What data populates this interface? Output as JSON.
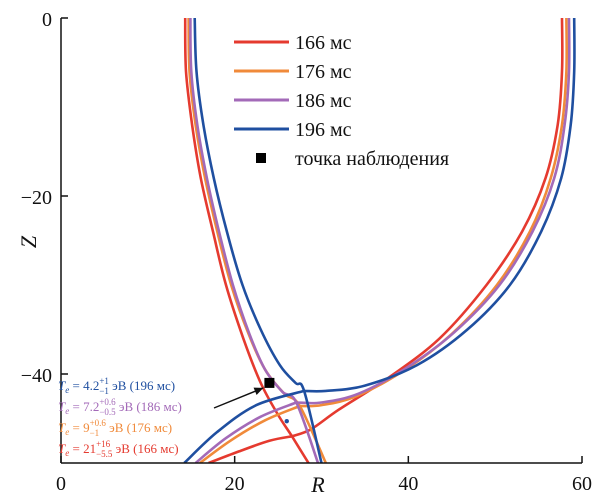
{
  "chart_data": {
    "type": "line",
    "title": "",
    "xlabel": "R",
    "ylabel": "Z",
    "xlim": [
      0,
      60
    ],
    "ylim": [
      -50,
      0
    ],
    "xticks": [
      "0",
      "20",
      "40",
      "60"
    ],
    "yticks": [
      "0",
      "−20",
      "−40"
    ],
    "grid": false,
    "legend_position": "top-center",
    "series": [
      {
        "name": "166 мс",
        "color": "#e53a2f",
        "x_point": [
          26.6,
          -47.0
        ],
        "inner_leg": [
          [
            14.3,
            0
          ],
          [
            14.4,
            -6
          ],
          [
            15.1,
            -12
          ],
          [
            16.1,
            -18
          ],
          [
            17.5,
            -24
          ],
          [
            19.0,
            -30
          ],
          [
            21.0,
            -36
          ],
          [
            23.0,
            -41
          ],
          [
            25.0,
            -44.6
          ],
          [
            26.6,
            -47.0
          ],
          [
            28.5,
            -50
          ]
        ],
        "outer_leg": [
          [
            57.7,
            0
          ],
          [
            57.7,
            -6
          ],
          [
            57.2,
            -12
          ],
          [
            55.8,
            -18
          ],
          [
            53.1,
            -24
          ],
          [
            49.0,
            -30
          ],
          [
            43.6,
            -36
          ],
          [
            37.6,
            -40.5
          ],
          [
            32.0,
            -44.0
          ],
          [
            28.8,
            -46.2
          ],
          [
            26.6,
            -47.0
          ]
        ],
        "divertor_leg": [
          [
            17.0,
            -50
          ],
          [
            20.5,
            -48.7
          ],
          [
            24.0,
            -47.5
          ],
          [
            26.6,
            -47.0
          ]
        ]
      },
      {
        "name": "176 мс",
        "color": "#f08a3a",
        "x_point": [
          27.5,
          -43.6
        ],
        "inner_leg": [
          [
            14.7,
            0
          ],
          [
            14.8,
            -6
          ],
          [
            15.5,
            -12
          ],
          [
            16.6,
            -18
          ],
          [
            18.0,
            -24
          ],
          [
            19.6,
            -30
          ],
          [
            21.6,
            -35.5
          ],
          [
            23.5,
            -39.5
          ],
          [
            25.7,
            -42.2
          ],
          [
            27.5,
            -43.6
          ],
          [
            30.5,
            -50
          ]
        ],
        "outer_leg": [
          [
            58.2,
            0
          ],
          [
            58.2,
            -6
          ],
          [
            57.7,
            -12
          ],
          [
            56.4,
            -18
          ],
          [
            54.0,
            -24
          ],
          [
            50.2,
            -30
          ],
          [
            45.0,
            -35.5
          ],
          [
            39.5,
            -39.6
          ],
          [
            34.0,
            -42.5
          ],
          [
            30.0,
            -43.5
          ],
          [
            27.5,
            -43.6
          ]
        ],
        "divertor_leg": [
          [
            16.0,
            -50
          ],
          [
            19.5,
            -47.5
          ],
          [
            23.5,
            -45.2
          ],
          [
            27.5,
            -43.6
          ]
        ]
      },
      {
        "name": "186 мс",
        "color": "#a36ab8",
        "x_point": [
          27.1,
          -43.2
        ],
        "inner_leg": [
          [
            14.9,
            0
          ],
          [
            15.0,
            -6
          ],
          [
            15.7,
            -12
          ],
          [
            16.8,
            -18
          ],
          [
            18.2,
            -24
          ],
          [
            19.8,
            -30
          ],
          [
            21.7,
            -35.5
          ],
          [
            23.5,
            -39.5
          ],
          [
            25.5,
            -42.0
          ],
          [
            27.1,
            -43.2
          ],
          [
            29.6,
            -50
          ]
        ],
        "outer_leg": [
          [
            58.5,
            0
          ],
          [
            58.5,
            -6
          ],
          [
            58.0,
            -12
          ],
          [
            56.8,
            -18
          ],
          [
            54.3,
            -24
          ],
          [
            50.5,
            -30
          ],
          [
            45.3,
            -35.3
          ],
          [
            39.8,
            -39.3
          ],
          [
            34.3,
            -42.2
          ],
          [
            30.0,
            -43.2
          ],
          [
            27.1,
            -43.2
          ]
        ],
        "divertor_leg": [
          [
            15.5,
            -50
          ],
          [
            19.0,
            -47.2
          ],
          [
            23.0,
            -44.8
          ],
          [
            27.1,
            -43.2
          ]
        ]
      },
      {
        "name": "196 мс",
        "color": "#1f4fa0",
        "x_point": [
          28.0,
          -41.9
        ],
        "inner_leg": [
          [
            15.4,
            0
          ],
          [
            15.6,
            -6
          ],
          [
            16.4,
            -12
          ],
          [
            17.6,
            -18
          ],
          [
            19.1,
            -24
          ],
          [
            20.9,
            -30
          ],
          [
            23.0,
            -35
          ],
          [
            25.2,
            -39.0
          ],
          [
            27.0,
            -41.0
          ],
          [
            28.0,
            -41.9
          ],
          [
            30.0,
            -50
          ]
        ],
        "outer_leg": [
          [
            59.1,
            0
          ],
          [
            59.1,
            -6
          ],
          [
            58.7,
            -12
          ],
          [
            57.6,
            -18
          ],
          [
            55.3,
            -24
          ],
          [
            51.7,
            -30
          ],
          [
            46.8,
            -35.0
          ],
          [
            41.0,
            -39.0
          ],
          [
            35.0,
            -41.3
          ],
          [
            30.5,
            -41.9
          ],
          [
            28.0,
            -41.9
          ]
        ],
        "divertor_leg": [
          [
            14.2,
            -50
          ],
          [
            18.0,
            -46.5
          ],
          [
            22.5,
            -43.5
          ],
          [
            28.0,
            -41.9
          ]
        ]
      }
    ],
    "observation_point": {
      "name": "точка наблюдения",
      "x": 24.0,
      "y": -41.0
    },
    "extra_marker": {
      "x": 26.0,
      "y": -45.3
    },
    "annotations": [
      {
        "var": "T",
        "sub": "e",
        "eq": " = 4.2",
        "sup": "+1",
        "low": "−1",
        "tail": " эВ (196 мс)",
        "color": "#1f4fa0"
      },
      {
        "var": "T",
        "sub": "e",
        "eq": " = 7.2",
        "sup": "+0.6",
        "low": "−0.5",
        "tail": " эВ (186 мс)",
        "color": "#a36ab8"
      },
      {
        "var": "T",
        "sub": "e",
        "eq": " = 9",
        "sup": "+0.6",
        "low": "−1",
        "tail": " эВ (176 мс)",
        "color": "#f08a3a"
      },
      {
        "var": "T",
        "sub": "e",
        "eq": " = 21",
        "sup": "+16",
        "low": "−5.5",
        "tail": " эВ (166 мс)",
        "color": "#e53a2f"
      }
    ]
  }
}
